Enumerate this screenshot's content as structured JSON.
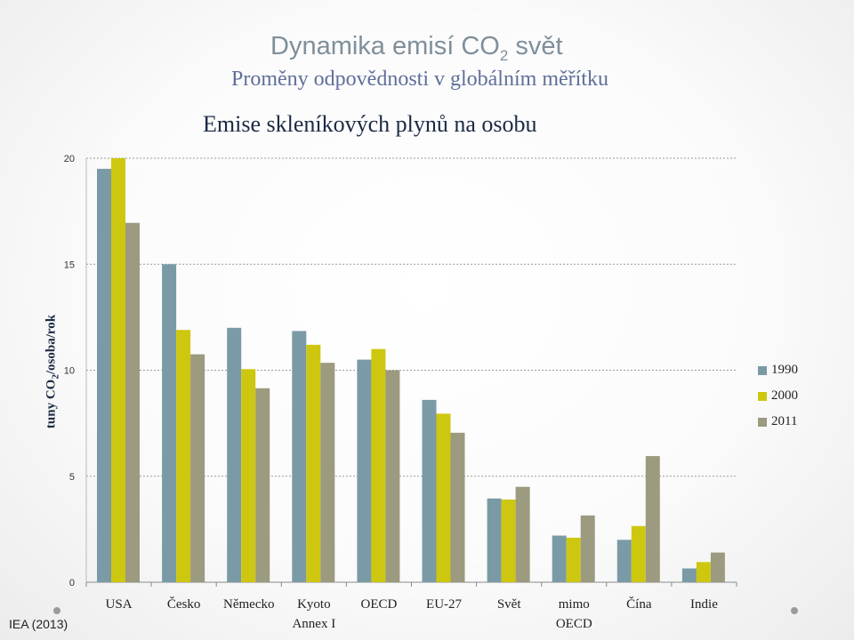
{
  "header": {
    "title_prefix": "Dynamika  emisí  CO",
    "title_sub": "2",
    "title_suffix": " svět",
    "subtitle": "Proměny odpovědnosti v globálním měřítku"
  },
  "source": "IEA (2013)",
  "colors": {
    "grid": "#9a9a9a",
    "axis": "#8a8a8a"
  },
  "chart_data": {
    "type": "bar",
    "title": "Emise skleníkových plynů na osobu",
    "ylabel_prefix": "tuny CO",
    "ylabel_sub": "2",
    "ylabel_suffix": "/osoba/rok",
    "ylim": [
      0,
      20
    ],
    "yticks": [
      0,
      5,
      10,
      15,
      20
    ],
    "grid": true,
    "legend_position": "right",
    "categories": [
      [
        "USA"
      ],
      [
        "Česko"
      ],
      [
        "Německo"
      ],
      [
        "Kyoto",
        "Annex I"
      ],
      [
        "OECD"
      ],
      [
        "EU-27"
      ],
      [
        "Svět"
      ],
      [
        "mimo",
        "OECD"
      ],
      [
        "Čína"
      ],
      [
        "Indie"
      ]
    ],
    "series": [
      {
        "name": "1990",
        "color": "#7a9aa6",
        "values": [
          19.5,
          15.0,
          12.0,
          11.85,
          10.5,
          8.6,
          3.95,
          2.2,
          2.0,
          0.65
        ]
      },
      {
        "name": "2000",
        "color": "#cec70f",
        "values": [
          20.0,
          11.9,
          10.05,
          11.2,
          11.0,
          7.95,
          3.9,
          2.1,
          2.65,
          0.95
        ]
      },
      {
        "name": "2011",
        "color": "#9c9a7f",
        "values": [
          16.95,
          10.75,
          9.15,
          10.35,
          10.0,
          7.05,
          4.5,
          3.15,
          5.95,
          1.4
        ]
      }
    ]
  }
}
